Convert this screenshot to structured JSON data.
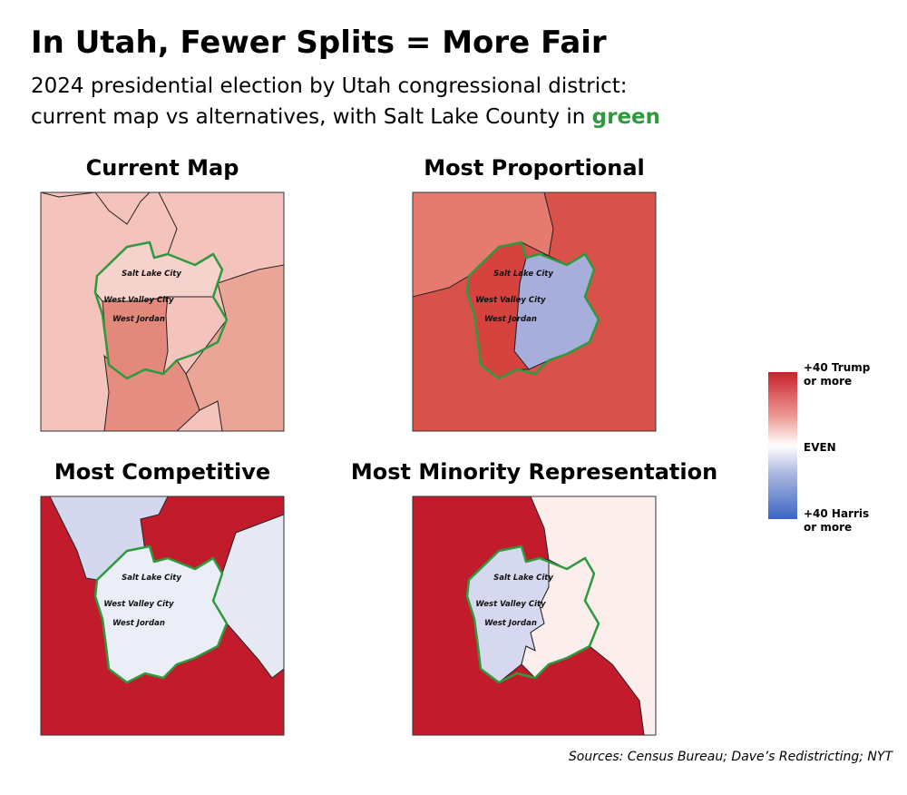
{
  "header": {
    "title": "In Utah, Fewer Splits = More Fair",
    "subtitle_lines": [
      "2024 presidential election by Utah congressional district:",
      "current map vs alternatives, with Salt Lake County in"
    ],
    "highlight": "green"
  },
  "panels": [
    {
      "title": "Current Map",
      "cities": [
        "Salt Lake City",
        "West Valley City",
        "West Jordan"
      ]
    },
    {
      "title": "Most Proportional",
      "cities": [
        "Salt Lake City",
        "West Valley City",
        "West Jordan"
      ]
    },
    {
      "title": "Most Competitive",
      "cities": [
        "Salt Lake City",
        "West Valley City",
        "West Jordan"
      ]
    },
    {
      "title": "Most Minority Representation",
      "cities": [
        "Salt Lake City",
        "West Valley City",
        "West Jordan"
      ]
    }
  ],
  "legend": {
    "top": [
      "+40 Trump",
      "or more"
    ],
    "middle": "EVEN",
    "bottom": [
      "+40 Harris",
      "or more"
    ]
  },
  "source": "Sources: Census Bureau; Dave’s Redistricting; NYT"
}
